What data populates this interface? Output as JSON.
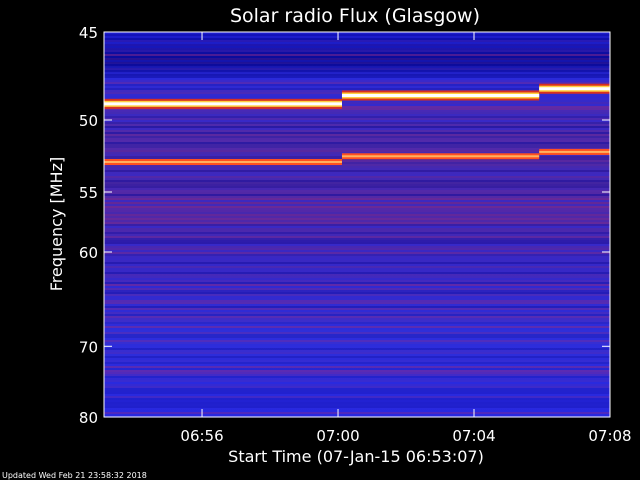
{
  "chart_data": {
    "type": "heatmap",
    "title": "Solar radio Flux (Glasgow)",
    "xlabel": "Start Time (07-Jan-15 06:53:07)",
    "ylabel": "Frequency [MHz]",
    "footer": "Updated Wed Feb 21 23:58:32 2018",
    "x_range": [
      "06:53:07",
      "07:08:00"
    ],
    "y_range_mhz": [
      45,
      80
    ],
    "x_ticks": [
      {
        "label": "06:56",
        "t": "06:56:00"
      },
      {
        "label": "07:00",
        "t": "07:00:00"
      },
      {
        "label": "07:04",
        "t": "07:04:00"
      },
      {
        "label": "07:08",
        "t": "07:08:00"
      }
    ],
    "y_ticks": [
      45,
      50,
      55,
      60,
      70,
      80
    ],
    "colormap": [
      "#0a0aa0",
      "#2a2ae0",
      "#5a2ab0",
      "#8a2a8a",
      "#d83020",
      "#ffd040",
      "#ffffff"
    ],
    "segments": [
      {
        "start": "06:53:07",
        "end": "07:00:07"
      },
      {
        "start": "07:00:07",
        "end": "07:05:55"
      },
      {
        "start": "07:05:55",
        "end": "07:08:00"
      }
    ],
    "bright_bands_mhz": [
      {
        "mhz": [
          49.0,
          48.5,
          48.1
        ],
        "level": "white"
      },
      {
        "mhz": [
          52.8,
          52.4,
          52.1
        ],
        "level": "red"
      }
    ]
  }
}
